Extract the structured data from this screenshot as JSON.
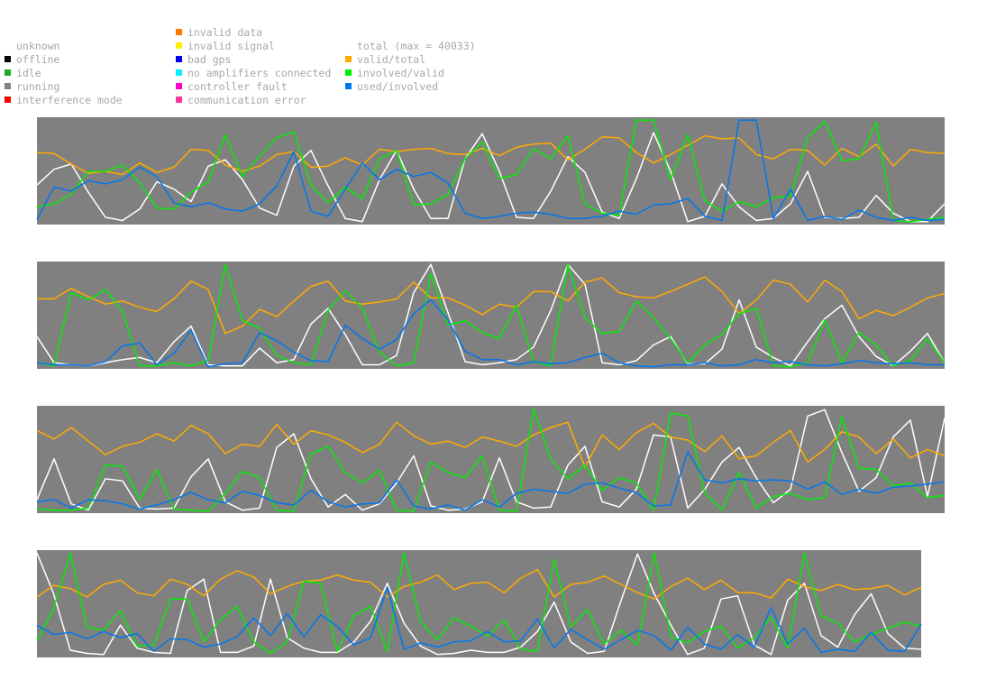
{
  "legend": {
    "status": [
      {
        "label": "unknown",
        "color": ""
      },
      {
        "label": "offline",
        "color": "#000000"
      },
      {
        "label": "idle",
        "color": "#22aa22"
      },
      {
        "label": "running",
        "color": "#808080"
      },
      {
        "label": "interference mode",
        "color": "#ff0000"
      }
    ],
    "errors": [
      {
        "label": "invalid data",
        "color": "#ff7700"
      },
      {
        "label": "invalid signal",
        "color": "#ffee00"
      },
      {
        "label": "bad gps",
        "color": "#0000ee"
      },
      {
        "label": "no amplifiers connected",
        "color": "#00eeff"
      },
      {
        "label": "controller fault",
        "color": "#ff00cc"
      },
      {
        "label": "communication error",
        "color": "#ff3399"
      }
    ],
    "metrics": [
      {
        "label": "total (max = 40033)",
        "color": ""
      },
      {
        "label": "valid/total",
        "color": "#ffaa00"
      },
      {
        "label": "involved/valid",
        "color": "#00ee00"
      },
      {
        "label": "used/involved",
        "color": "#0077ee"
      }
    ]
  },
  "chart_data": {
    "type": "line",
    "background": "#808080",
    "total_max": 40033,
    "ylim": [
      0,
      1
    ],
    "series_colors": {
      "total": "#ffffff",
      "valid_total": "#ffaa00",
      "involved_valid": "#00ee00",
      "used_involved": "#0077ee"
    },
    "panels": [
      {
        "total": [
          0.37,
          0.52,
          0.57,
          0.3,
          0.06,
          0.03,
          0.14,
          0.4,
          0.33,
          0.21,
          0.55,
          0.61,
          0.42,
          0.15,
          0.08,
          0.55,
          0.7,
          0.36,
          0.05,
          0.02,
          0.42,
          0.7,
          0.33,
          0.05,
          0.05,
          0.62,
          0.86,
          0.5,
          0.06,
          0.05,
          0.31,
          0.64,
          0.49,
          0.11,
          0.05,
          0.43,
          0.87,
          0.5,
          0.02,
          0.07,
          0.38,
          0.16,
          0.03,
          0.05,
          0.19,
          0.5,
          0.06,
          0.05,
          0.06,
          0.27,
          0.1,
          0.02,
          0.02,
          0.19
        ],
        "valid_total": [
          0.68,
          0.67,
          0.57,
          0.48,
          0.5,
          0.47,
          0.58,
          0.49,
          0.54,
          0.71,
          0.7,
          0.56,
          0.5,
          0.55,
          0.66,
          0.69,
          0.54,
          0.55,
          0.63,
          0.56,
          0.71,
          0.69,
          0.71,
          0.72,
          0.67,
          0.66,
          0.72,
          0.65,
          0.73,
          0.76,
          0.77,
          0.61,
          0.71,
          0.83,
          0.82,
          0.68,
          0.58,
          0.66,
          0.75,
          0.84,
          0.81,
          0.82,
          0.66,
          0.62,
          0.71,
          0.7,
          0.56,
          0.72,
          0.64,
          0.76,
          0.55,
          0.71,
          0.68,
          0.67
        ],
        "involved_valid": [
          0.16,
          0.19,
          0.28,
          0.5,
          0.5,
          0.56,
          0.39,
          0.15,
          0.14,
          0.3,
          0.4,
          0.85,
          0.45,
          0.65,
          0.82,
          0.88,
          0.37,
          0.2,
          0.35,
          0.24,
          0.62,
          0.7,
          0.18,
          0.19,
          0.28,
          0.62,
          0.78,
          0.43,
          0.47,
          0.72,
          0.62,
          0.84,
          0.19,
          0.1,
          0.08,
          0.99,
          0.99,
          0.42,
          0.85,
          0.22,
          0.12,
          0.21,
          0.16,
          0.25,
          0.26,
          0.82,
          0.98,
          0.6,
          0.62,
          0.97,
          0.03,
          0.02,
          0.04,
          0.06
        ],
        "used_involved": [
          0.04,
          0.35,
          0.31,
          0.41,
          0.38,
          0.42,
          0.54,
          0.45,
          0.2,
          0.16,
          0.2,
          0.14,
          0.12,
          0.19,
          0.36,
          0.69,
          0.12,
          0.07,
          0.33,
          0.58,
          0.42,
          0.52,
          0.45,
          0.49,
          0.39,
          0.1,
          0.05,
          0.07,
          0.1,
          0.11,
          0.09,
          0.05,
          0.05,
          0.07,
          0.12,
          0.09,
          0.18,
          0.19,
          0.24,
          0.07,
          0.03,
          0.99,
          0.99,
          0.05,
          0.33,
          0.03,
          0.07,
          0.04,
          0.13,
          0.06,
          0.03,
          0.06,
          0.03,
          0.04
        ]
      },
      {
        "total": [
          0.3,
          0.05,
          0.03,
          0.02,
          0.05,
          0.08,
          0.1,
          0.05,
          0.25,
          0.4,
          0.03,
          0.02,
          0.02,
          0.19,
          0.05,
          0.08,
          0.42,
          0.57,
          0.32,
          0.03,
          0.03,
          0.12,
          0.72,
          0.99,
          0.53,
          0.06,
          0.03,
          0.05,
          0.08,
          0.2,
          0.55,
          0.99,
          0.8,
          0.05,
          0.03,
          0.07,
          0.22,
          0.3,
          0.04,
          0.04,
          0.18,
          0.65,
          0.2,
          0.1,
          0.02,
          0.25,
          0.47,
          0.6,
          0.3,
          0.11,
          0.02,
          0.16,
          0.33,
          0.05
        ],
        "valid_total": [
          0.66,
          0.66,
          0.76,
          0.68,
          0.61,
          0.64,
          0.58,
          0.54,
          0.66,
          0.83,
          0.75,
          0.33,
          0.4,
          0.56,
          0.49,
          0.64,
          0.78,
          0.83,
          0.64,
          0.61,
          0.63,
          0.66,
          0.82,
          0.67,
          0.67,
          0.6,
          0.51,
          0.61,
          0.58,
          0.73,
          0.73,
          0.64,
          0.82,
          0.86,
          0.72,
          0.68,
          0.67,
          0.73,
          0.8,
          0.87,
          0.73,
          0.52,
          0.65,
          0.84,
          0.8,
          0.63,
          0.84,
          0.73,
          0.47,
          0.55,
          0.5,
          0.58,
          0.67,
          0.71
        ],
        "involved_valid": [
          0.05,
          0.02,
          0.72,
          0.65,
          0.75,
          0.54,
          0.02,
          0.02,
          0.05,
          0.02,
          0.07,
          0.99,
          0.45,
          0.38,
          0.12,
          0.05,
          0.03,
          0.55,
          0.74,
          0.57,
          0.15,
          0.02,
          0.05,
          0.9,
          0.41,
          0.45,
          0.34,
          0.28,
          0.6,
          0.06,
          0.02,
          0.99,
          0.48,
          0.33,
          0.35,
          0.64,
          0.48,
          0.28,
          0.05,
          0.22,
          0.32,
          0.52,
          0.57,
          0.02,
          0.01,
          0.05,
          0.46,
          0.05,
          0.34,
          0.22,
          0.02,
          0.07,
          0.28,
          0.05
        ],
        "used_involved": [
          0.05,
          0.03,
          0.03,
          0.02,
          0.06,
          0.21,
          0.24,
          0.03,
          0.14,
          0.36,
          0.01,
          0.04,
          0.05,
          0.34,
          0.26,
          0.15,
          0.07,
          0.06,
          0.41,
          0.28,
          0.18,
          0.27,
          0.52,
          0.65,
          0.46,
          0.16,
          0.08,
          0.08,
          0.03,
          0.06,
          0.04,
          0.05,
          0.1,
          0.14,
          0.05,
          0.02,
          0.01,
          0.03,
          0.03,
          0.05,
          0.02,
          0.03,
          0.08,
          0.05,
          0.06,
          0.03,
          0.02,
          0.04,
          0.07,
          0.05,
          0.04,
          0.05,
          0.03,
          0.03
        ]
      },
      {
        "total": [
          0.12,
          0.51,
          0.08,
          0.02,
          0.32,
          0.3,
          0.04,
          0.03,
          0.04,
          0.34,
          0.51,
          0.1,
          0.02,
          0.04,
          0.62,
          0.75,
          0.32,
          0.05,
          0.17,
          0.02,
          0.08,
          0.28,
          0.54,
          0.06,
          0.02,
          0.03,
          0.1,
          0.52,
          0.1,
          0.04,
          0.05,
          0.45,
          0.63,
          0.1,
          0.05,
          0.22,
          0.74,
          0.72,
          0.04,
          0.22,
          0.48,
          0.62,
          0.33,
          0.09,
          0.22,
          0.92,
          0.98,
          0.57,
          0.2,
          0.33,
          0.72,
          0.88,
          0.15,
          0.9
        ],
        "valid_total": [
          0.78,
          0.7,
          0.81,
          0.68,
          0.55,
          0.63,
          0.67,
          0.75,
          0.68,
          0.83,
          0.75,
          0.56,
          0.65,
          0.63,
          0.84,
          0.65,
          0.78,
          0.74,
          0.67,
          0.57,
          0.65,
          0.86,
          0.73,
          0.65,
          0.68,
          0.62,
          0.72,
          0.68,
          0.63,
          0.74,
          0.81,
          0.86,
          0.43,
          0.74,
          0.6,
          0.76,
          0.85,
          0.72,
          0.69,
          0.58,
          0.73,
          0.51,
          0.54,
          0.67,
          0.78,
          0.48,
          0.6,
          0.77,
          0.72,
          0.56,
          0.7,
          0.52,
          0.6,
          0.54
        ],
        "involved_valid": [
          0.03,
          0.02,
          0.02,
          0.04,
          0.45,
          0.44,
          0.12,
          0.41,
          0.03,
          0.02,
          0.01,
          0.18,
          0.39,
          0.33,
          0.02,
          0.01,
          0.56,
          0.63,
          0.38,
          0.28,
          0.4,
          0.02,
          0.01,
          0.48,
          0.38,
          0.33,
          0.54,
          0.02,
          0.01,
          0.99,
          0.51,
          0.32,
          0.45,
          0.21,
          0.33,
          0.28,
          0.02,
          0.95,
          0.92,
          0.18,
          0.02,
          0.38,
          0.04,
          0.15,
          0.18,
          0.12,
          0.14,
          0.91,
          0.42,
          0.41,
          0.25,
          0.28,
          0.14,
          0.16
        ],
        "used_involved": [
          0.1,
          0.12,
          0.04,
          0.12,
          0.11,
          0.08,
          0.03,
          0.07,
          0.12,
          0.19,
          0.12,
          0.09,
          0.2,
          0.16,
          0.09,
          0.07,
          0.21,
          0.1,
          0.05,
          0.08,
          0.09,
          0.31,
          0.06,
          0.03,
          0.07,
          0.02,
          0.12,
          0.05,
          0.18,
          0.22,
          0.2,
          0.18,
          0.27,
          0.28,
          0.23,
          0.19,
          0.06,
          0.07,
          0.58,
          0.31,
          0.28,
          0.32,
          0.3,
          0.31,
          0.3,
          0.22,
          0.29,
          0.17,
          0.22,
          0.18,
          0.24,
          0.25,
          0.27,
          0.29
        ]
      },
      {
        "total": [
          0.99,
          0.6,
          0.06,
          0.03,
          0.02,
          0.3,
          0.08,
          0.04,
          0.03,
          0.63,
          0.74,
          0.04,
          0.04,
          0.1,
          0.74,
          0.18,
          0.08,
          0.04,
          0.04,
          0.14,
          0.34,
          0.7,
          0.32,
          0.1,
          0.02,
          0.03,
          0.06,
          0.04,
          0.04,
          0.09,
          0.24,
          0.52,
          0.14,
          0.03,
          0.05,
          0.53,
          0.98,
          0.6,
          0.3,
          0.02,
          0.08,
          0.55,
          0.58,
          0.11,
          0.02,
          0.54,
          0.7,
          0.2,
          0.09,
          0.4,
          0.6,
          0.22,
          0.08,
          0.07
        ],
        "valid_total": [
          0.57,
          0.68,
          0.65,
          0.57,
          0.69,
          0.73,
          0.61,
          0.58,
          0.74,
          0.69,
          0.58,
          0.74,
          0.82,
          0.76,
          0.6,
          0.67,
          0.72,
          0.73,
          0.78,
          0.73,
          0.71,
          0.57,
          0.67,
          0.71,
          0.78,
          0.64,
          0.7,
          0.71,
          0.61,
          0.75,
          0.83,
          0.57,
          0.69,
          0.71,
          0.77,
          0.69,
          0.61,
          0.55,
          0.67,
          0.75,
          0.64,
          0.73,
          0.61,
          0.61,
          0.56,
          0.74,
          0.67,
          0.63,
          0.69,
          0.64,
          0.65,
          0.68,
          0.59,
          0.66
        ],
        "involved_valid": [
          0.15,
          0.46,
          0.99,
          0.28,
          0.25,
          0.44,
          0.1,
          0.11,
          0.55,
          0.55,
          0.14,
          0.35,
          0.48,
          0.14,
          0.03,
          0.14,
          0.72,
          0.7,
          0.05,
          0.39,
          0.48,
          0.05,
          0.99,
          0.33,
          0.16,
          0.37,
          0.29,
          0.19,
          0.35,
          0.07,
          0.05,
          0.93,
          0.28,
          0.45,
          0.12,
          0.25,
          0.11,
          0.99,
          0.19,
          0.13,
          0.24,
          0.29,
          0.08,
          0.18,
          0.38,
          0.08,
          0.99,
          0.39,
          0.32,
          0.14,
          0.21,
          0.27,
          0.33,
          0.29
        ],
        "used_involved": [
          0.3,
          0.21,
          0.23,
          0.17,
          0.24,
          0.18,
          0.22,
          0.05,
          0.17,
          0.16,
          0.09,
          0.12,
          0.19,
          0.37,
          0.2,
          0.41,
          0.19,
          0.4,
          0.29,
          0.11,
          0.18,
          0.66,
          0.07,
          0.13,
          0.09,
          0.14,
          0.15,
          0.24,
          0.14,
          0.15,
          0.36,
          0.08,
          0.26,
          0.16,
          0.07,
          0.16,
          0.25,
          0.2,
          0.06,
          0.28,
          0.12,
          0.07,
          0.21,
          0.09,
          0.47,
          0.12,
          0.27,
          0.04,
          0.07,
          0.05,
          0.23,
          0.06,
          0.05,
          0.31
        ]
      }
    ]
  }
}
